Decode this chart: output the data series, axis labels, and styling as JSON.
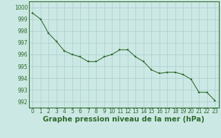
{
  "x": [
    0,
    1,
    2,
    3,
    4,
    5,
    6,
    7,
    8,
    9,
    10,
    11,
    12,
    13,
    14,
    15,
    16,
    17,
    18,
    19,
    20,
    21,
    22,
    23
  ],
  "y": [
    999.5,
    999.0,
    997.8,
    997.1,
    996.3,
    996.0,
    995.8,
    995.4,
    995.4,
    995.8,
    996.0,
    996.4,
    996.4,
    995.8,
    995.4,
    994.7,
    994.4,
    994.5,
    994.5,
    994.3,
    993.9,
    992.8,
    992.8,
    992.1
  ],
  "line_color": "#2d6a2d",
  "marker_color": "#2d6a2d",
  "bg_color": "#cce8e4",
  "grid_color": "#a8cccc",
  "text_color": "#2d6a2d",
  "ylim": [
    991.5,
    1000.5
  ],
  "yticks": [
    992,
    993,
    994,
    995,
    996,
    997,
    998,
    999,
    1000
  ],
  "xticks": [
    0,
    1,
    2,
    3,
    4,
    5,
    6,
    7,
    8,
    9,
    10,
    11,
    12,
    13,
    14,
    15,
    16,
    17,
    18,
    19,
    20,
    21,
    22,
    23
  ],
  "xlabel": "Graphe pression niveau de la mer (hPa)",
  "tick_fontsize": 5.5,
  "label_fontsize": 7.5
}
